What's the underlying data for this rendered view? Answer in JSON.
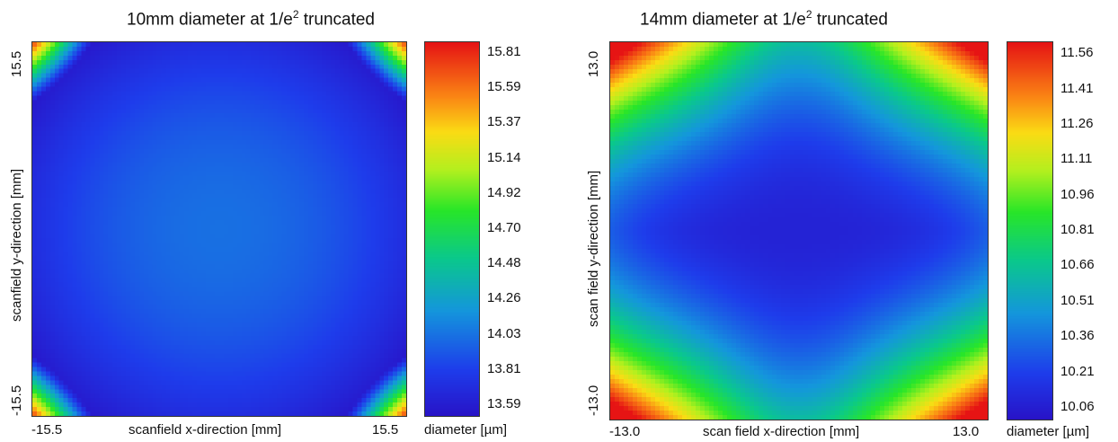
{
  "chart_data": [
    {
      "type": "heatmap",
      "title_main": "10mm diameter at 1/e",
      "title_sup": "2",
      "title_rest": " truncated",
      "xlabel": "scanfield x-direction [mm]",
      "ylabel": "scanfield y-direction [mm]",
      "xlim": [
        -15.5,
        15.5
      ],
      "ylim": [
        -15.5,
        15.5
      ],
      "x_tick_labels": [
        "-15.5",
        "15.5"
      ],
      "y_tick_labels": [
        "15.5",
        "-15.5"
      ],
      "colorbar": {
        "label": "diameter [µm]",
        "range": [
          13.52,
          15.88
        ],
        "tick_labels": [
          "15.81",
          "15.59",
          "15.37",
          "15.14",
          "14.92",
          "14.70",
          "14.48",
          "14.26",
          "14.03",
          "13.81",
          "13.59"
        ]
      },
      "pattern": "center ~14.0 µm, blue ring ~13.6 µm near edges, yellow-red corners ~15.0-15.8 µm",
      "center_value": 14.0,
      "edge_min_value": 13.58,
      "corner_value": 15.8
    },
    {
      "type": "heatmap",
      "title_main": "14mm diameter at 1/e",
      "title_sup": "2",
      "title_rest": " truncated",
      "xlabel": "scan field x-direction [mm]",
      "ylabel": "scan field y-direction [mm]",
      "xlim": [
        -13.0,
        13.0
      ],
      "ylim": [
        -13.0,
        13.0
      ],
      "x_tick_labels": [
        "-13.0",
        "13.0"
      ],
      "y_tick_labels": [
        "13.0",
        "-13.0"
      ],
      "colorbar": {
        "label": "diameter [µm]",
        "range": [
          10.01,
          11.61
        ],
        "tick_labels": [
          "11.56",
          "11.41",
          "11.26",
          "11.11",
          "10.96",
          "10.81",
          "10.66",
          "10.51",
          "10.36",
          "10.21",
          "10.06"
        ]
      },
      "pattern": "minimum ~10.1 µm along central horizontal band, ~10.3 µm at edge midpoints, yellow lobes ~11.0 µm, red corners ~11.6 µm",
      "center_value": 10.08,
      "corner_value": 11.58
    }
  ]
}
